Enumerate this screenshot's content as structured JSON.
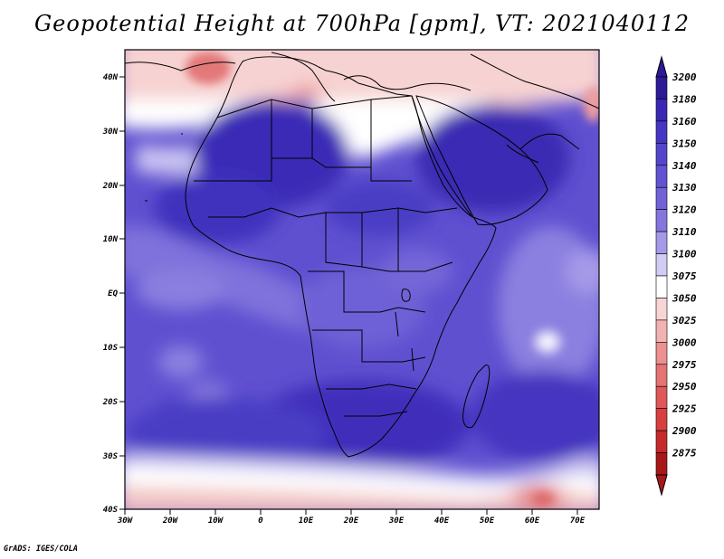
{
  "title": "Geopotential Height at 700hPa [gpm], VT: 2021040112",
  "footer": "GrADS: IGES/COLA",
  "map": {
    "region": "Africa",
    "lon_range": [
      -30,
      75
    ],
    "lat_range": [
      -40,
      45
    ],
    "lat_labels": [
      "40N",
      "30N",
      "20N",
      "10N",
      "EQ",
      "10S",
      "20S",
      "30S",
      "40S"
    ],
    "lon_labels": [
      "30W",
      "20W",
      "10W",
      "0",
      "10E",
      "20E",
      "30E",
      "40E",
      "50E",
      "60E",
      "70E"
    ]
  },
  "colorbar": {
    "levels": [
      "3200",
      "3180",
      "3160",
      "3150",
      "3140",
      "3130",
      "3120",
      "3110",
      "3100",
      "3075",
      "3050",
      "3025",
      "3000",
      "2975",
      "2950",
      "2925",
      "2900",
      "2875"
    ],
    "colors": [
      "#2c1a96",
      "#3a28b4",
      "#4636c4",
      "#5446cc",
      "#6254d2",
      "#7262d8",
      "#8476de",
      "#a49ae8",
      "#d0ccf4",
      "#ffffff",
      "#f8d4d4",
      "#f2b2b2",
      "#ec9090",
      "#e67272",
      "#e05858",
      "#d84040",
      "#c62a2a",
      "#a81818"
    ]
  }
}
